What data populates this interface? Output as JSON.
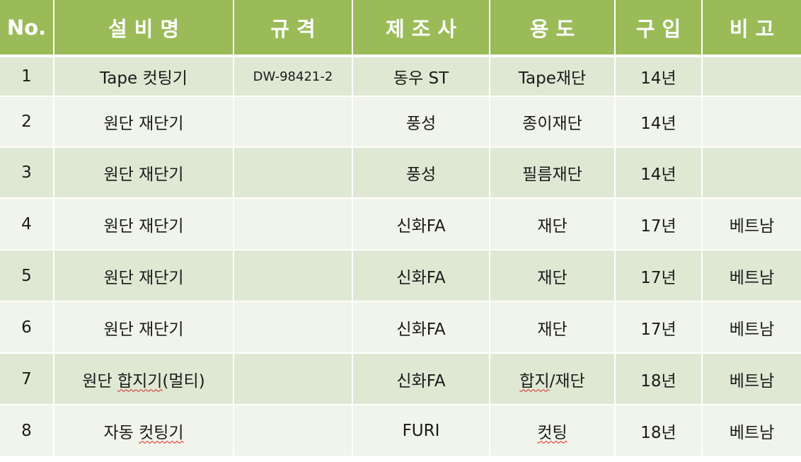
{
  "headers": [
    "No.",
    "설비명",
    "규격",
    "제조사",
    "용도",
    "구입",
    "비고"
  ],
  "rows": [
    {
      "no": "1",
      "name_a": "Tape 컷팅기",
      "name_b": "",
      "spec": "DW-98421-2",
      "maker": "동우 ST",
      "use": "Tape재단",
      "purchase": "14년",
      "note": ""
    },
    {
      "no": "2",
      "name_a": "원단 재단기",
      "name_b": "",
      "spec": "",
      "maker": "풍성",
      "use": "종이재단",
      "purchase": "14년",
      "note": ""
    },
    {
      "no": "3",
      "name_a": "원단 재단기",
      "name_b": "",
      "spec": "",
      "maker": "풍성",
      "use": "필름재단",
      "purchase": "14년",
      "note": ""
    },
    {
      "no": "4",
      "name_a": "원단 재단기",
      "name_b": "",
      "spec": "",
      "maker": "신화FA",
      "use": "재단",
      "purchase": "17년",
      "note": "베트남"
    },
    {
      "no": "5",
      "name_a": "원단 재단기",
      "name_b": "",
      "spec": "",
      "maker": "신화FA",
      "use": "재단",
      "purchase": "17년",
      "note": "베트남"
    },
    {
      "no": "6",
      "name_a": "원단 재단기",
      "name_b": "",
      "spec": "",
      "maker": "신화FA",
      "use": "재단",
      "purchase": "17년",
      "note": "베트남"
    },
    {
      "no": "7",
      "name_a": "원단 ",
      "name_b": "합지기",
      "name_c": "(멀티)",
      "spec": "",
      "maker": "신화FA",
      "use_a": "합지",
      "use_b": "/재단",
      "purchase": "18년",
      "note": "베트남"
    },
    {
      "no": "8",
      "name_a": "자동 ",
      "name_b": "컷팅기",
      "name_c": "",
      "spec": "",
      "maker": "FURI",
      "use_a": "컷팅",
      "use_b": "",
      "purchase": "18년",
      "note": "베트남"
    }
  ]
}
